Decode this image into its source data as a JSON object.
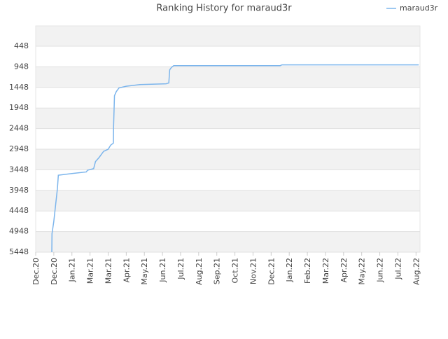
{
  "chart_data": {
    "type": "line",
    "title": "Ranking History for maraud3r",
    "x": [
      0.89,
      0.9,
      1.0,
      1.1,
      1.2,
      1.25,
      2.0,
      2.8,
      2.86,
      3.2,
      3.3,
      3.5,
      3.75,
      4.0,
      4.14,
      4.29,
      4.3,
      4.35,
      4.45,
      4.6,
      5.0,
      5.76,
      7.2,
      7.35,
      7.4,
      7.5,
      7.62,
      13.5,
      13.6,
      21.15
    ],
    "series": [
      {
        "name": "maraud3r",
        "color": "#7cb5ec",
        "values": [
          5448,
          5000,
          4700,
          4300,
          3900,
          3580,
          3540,
          3500,
          3458,
          3420,
          3250,
          3150,
          3000,
          2950,
          2850,
          2800,
          2400,
          1650,
          1550,
          1460,
          1420,
          1380,
          1360,
          1340,
          1020,
          960,
          920,
          920,
          900,
          900
        ]
      }
    ],
    "xlim": [
      0,
      21.22
    ],
    "ylim": [
      -45,
      5448
    ],
    "y_inverted": true,
    "xticks": [
      {
        "value": 0,
        "label": "Dec.20"
      },
      {
        "value": 1,
        "label": "Dec.20"
      },
      {
        "value": 2,
        "label": "Jan.21"
      },
      {
        "value": 3,
        "label": "Mar.21"
      },
      {
        "value": 4,
        "label": "Mar.21"
      },
      {
        "value": 5,
        "label": "Apr.21"
      },
      {
        "value": 6,
        "label": "May.21"
      },
      {
        "value": 7,
        "label": "Jun.21"
      },
      {
        "value": 8,
        "label": "Jul.21"
      },
      {
        "value": 9,
        "label": "Aug.21"
      },
      {
        "value": 10,
        "label": "Sep.21"
      },
      {
        "value": 11,
        "label": "Oct.21"
      },
      {
        "value": 12,
        "label": "Nov.21"
      },
      {
        "value": 13,
        "label": "Dec.21"
      },
      {
        "value": 14,
        "label": "Jan.22"
      },
      {
        "value": 15,
        "label": "Feb.22"
      },
      {
        "value": 16,
        "label": "Mar.22"
      },
      {
        "value": 17,
        "label": "Apr.22"
      },
      {
        "value": 18,
        "label": "May.22"
      },
      {
        "value": 19,
        "label": "Jun.22"
      },
      {
        "value": 20,
        "label": "Jul.22"
      },
      {
        "value": 21,
        "label": "Aug.22"
      }
    ],
    "yticks": [
      448,
      948,
      1448,
      1948,
      2448,
      2948,
      3448,
      3948,
      4448,
      4948,
      5448
    ],
    "grid": true,
    "legend": "top-right"
  }
}
